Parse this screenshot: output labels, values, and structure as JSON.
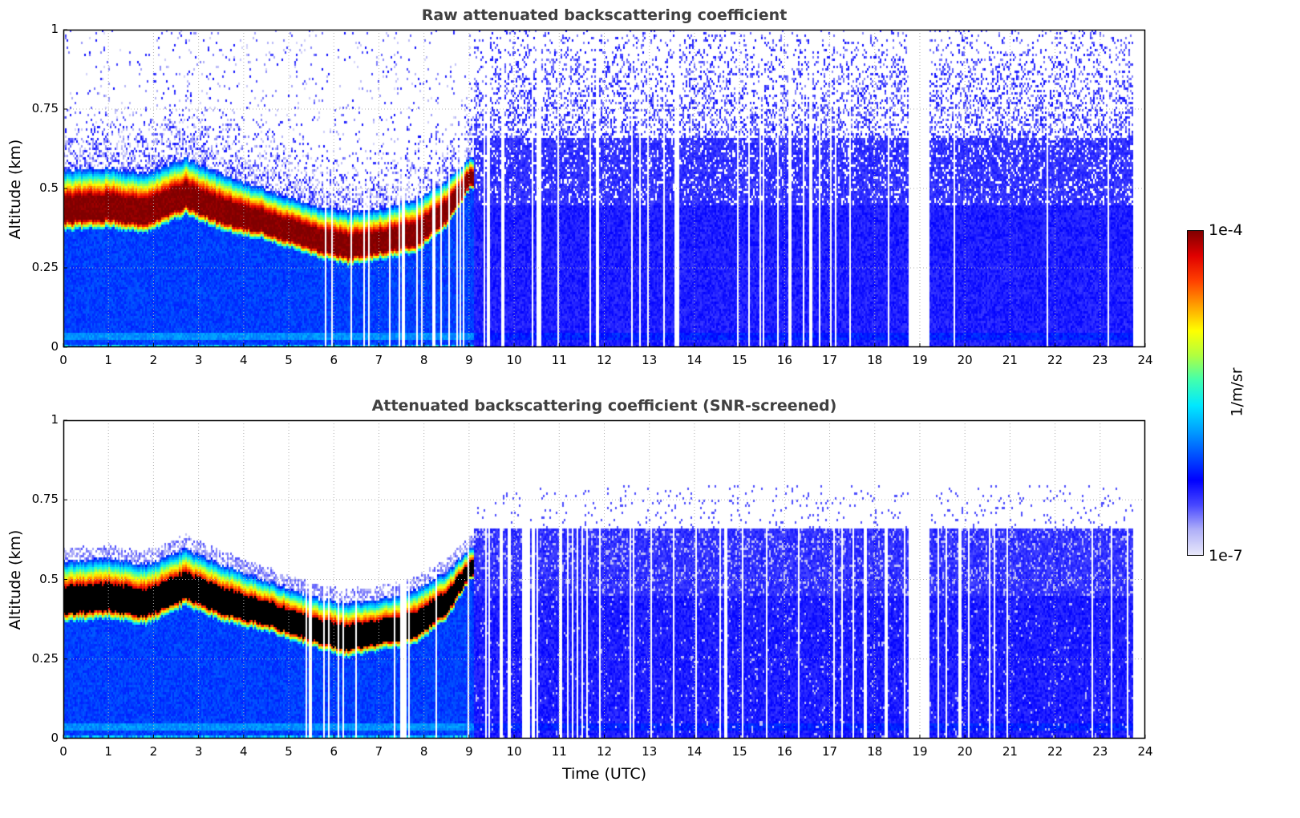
{
  "chart_data": [
    {
      "type": "heatmap",
      "title": "Raw attenuated backscattering coefficient",
      "xlabel": "",
      "ylabel": "Altitude (km)",
      "xlim": [
        0,
        24
      ],
      "ylim": [
        0,
        1
      ],
      "xticks": [
        "0",
        "1",
        "2",
        "3",
        "4",
        "5",
        "6",
        "7",
        "8",
        "9",
        "10",
        "11",
        "12",
        "13",
        "14",
        "15",
        "16",
        "17",
        "18",
        "19",
        "20",
        "21",
        "22",
        "23",
        "24"
      ],
      "yticks": [
        "0",
        "0.25",
        "0.5",
        "0.75",
        "1"
      ],
      "ytick_values": [
        0,
        0.25,
        0.5,
        0.75,
        1
      ],
      "grid": true,
      "screened": false
    },
    {
      "type": "heatmap",
      "title": "Attenuated backscattering coefficient (SNR-screened)",
      "xlabel": "Time (UTC)",
      "ylabel": "Altitude (km)",
      "xlim": [
        0,
        24
      ],
      "ylim": [
        0,
        1
      ],
      "xticks": [
        "0",
        "1",
        "2",
        "3",
        "4",
        "5",
        "6",
        "7",
        "8",
        "9",
        "10",
        "11",
        "12",
        "13",
        "14",
        "15",
        "16",
        "17",
        "18",
        "19",
        "20",
        "21",
        "22",
        "23",
        "24"
      ],
      "yticks": [
        "0",
        "0.25",
        "0.5",
        "0.75",
        "1"
      ],
      "ytick_values": [
        0,
        0.25,
        0.5,
        0.75,
        1
      ],
      "grid": true,
      "screened": true
    }
  ],
  "colorbar": {
    "label": "1/m/sr",
    "max_label": "1e-4",
    "min_label": "1e-7",
    "scale": "log",
    "range": [
      1e-07,
      0.0001
    ],
    "colors": [
      "#e8e8fa",
      "#b0b0f8",
      "#4848ff",
      "#0000ff",
      "#0050ff",
      "#00a0ff",
      "#00e8ff",
      "#40ffb0",
      "#b0ff40",
      "#ffff00",
      "#ffa000",
      "#ff4000",
      "#e00000",
      "#800000"
    ]
  },
  "layer": {
    "time_h": [
      0,
      1,
      1.8,
      2.7,
      3.5,
      4.5,
      5.5,
      6.3,
      7.0,
      7.8,
      8.5,
      9.0
    ],
    "base_km": [
      0.37,
      0.38,
      0.36,
      0.42,
      0.37,
      0.34,
      0.29,
      0.26,
      0.28,
      0.3,
      0.38,
      0.5
    ],
    "top_km": [
      0.56,
      0.57,
      0.55,
      0.6,
      0.55,
      0.5,
      0.45,
      0.43,
      0.44,
      0.47,
      0.53,
      0.6
    ]
  },
  "data_gaps_h": [
    [
      18.75,
      19.2
    ],
    [
      23.7,
      24
    ]
  ]
}
